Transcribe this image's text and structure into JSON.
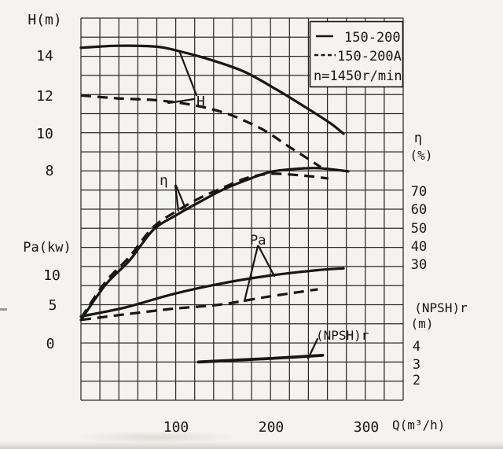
{
  "chart_data": {
    "type": "line",
    "description": "Centrifugal pump performance curves: head H, efficiency eta, shaft power Pa and (NPSH)r versus flow Q",
    "legend": {
      "items": [
        {
          "label": "150-200",
          "style": "solid"
        },
        {
          "label": "150-200A",
          "style": "dashed"
        }
      ],
      "speed_note": "n=1450r/min"
    },
    "axes": {
      "flow": {
        "title": "Q(m³/h)",
        "ticks": [
          "100",
          "200",
          "300"
        ],
        "range": [
          0,
          340
        ]
      },
      "head": {
        "title": "H(m)",
        "ticks": [
          "14",
          "12",
          "10",
          "8"
        ]
      },
      "power": {
        "title": "Pa(kw)",
        "ticks": [
          "10",
          "5",
          "0"
        ]
      },
      "efficiency": {
        "title": "η",
        "unit": "(%)",
        "ticks": [
          "70",
          "60",
          "50",
          "40",
          "30"
        ]
      },
      "npsh": {
        "title": "(NPSH)r",
        "unit": "(m)",
        "ticks": [
          "4",
          "3",
          "2"
        ]
      }
    },
    "curve_labels": {
      "head": "H",
      "efficiency": "η",
      "power": "Pa",
      "npsh": "(NPSH)r"
    },
    "series": [
      {
        "name": "H 150-200",
        "axis": "H",
        "style": "solid",
        "points": [
          [
            0,
            14.45
          ],
          [
            39,
            14.55
          ],
          [
            80,
            14.5
          ],
          [
            105,
            14.25
          ],
          [
            138,
            13.8
          ],
          [
            172,
            13.2
          ],
          [
            205,
            12.3
          ],
          [
            238,
            11.3
          ],
          [
            263,
            10.5
          ],
          [
            277,
            9.95
          ]
        ]
      },
      {
        "name": "H 150-200A",
        "axis": "H",
        "style": "dashed",
        "points": [
          [
            0,
            11.95
          ],
          [
            39,
            11.8
          ],
          [
            80,
            11.7
          ],
          [
            118,
            11.45
          ],
          [
            151,
            11.05
          ],
          [
            176,
            10.55
          ],
          [
            196,
            10.05
          ],
          [
            217,
            9.35
          ],
          [
            236,
            8.75
          ],
          [
            253,
            8.2
          ]
        ]
      },
      {
        "name": "η 150-200",
        "axis": "eta",
        "style": "solid",
        "points": [
          [
            0,
            2
          ],
          [
            26,
            20.5
          ],
          [
            51,
            33
          ],
          [
            76,
            49
          ],
          [
            101,
            57
          ],
          [
            126,
            64
          ],
          [
            151,
            70.5
          ],
          [
            176,
            75.5
          ],
          [
            200,
            79.5
          ],
          [
            225,
            81
          ],
          [
            250,
            81.5
          ],
          [
            282,
            79.8
          ]
        ]
      },
      {
        "name": "η 150-200A",
        "axis": "eta",
        "style": "dashed",
        "points": [
          [
            0,
            3
          ],
          [
            26,
            22
          ],
          [
            51,
            35
          ],
          [
            76,
            50.5
          ],
          [
            101,
            59
          ],
          [
            126,
            66
          ],
          [
            151,
            71.5
          ],
          [
            176,
            76.5
          ],
          [
            200,
            78.5
          ],
          [
            225,
            78
          ],
          [
            246,
            77
          ],
          [
            261,
            76
          ]
        ]
      },
      {
        "name": "Pa 150-200",
        "axis": "Pa",
        "style": "solid",
        "points": [
          [
            0,
            3.8
          ],
          [
            47,
            5.1
          ],
          [
            97,
            7.0
          ],
          [
            147,
            8.5
          ],
          [
            196,
            9.6
          ],
          [
            246,
            10.4
          ],
          [
            277,
            10.7
          ]
        ]
      },
      {
        "name": "Pa 150-200A",
        "axis": "Pa",
        "style": "dashed",
        "points": [
          [
            0,
            3.3
          ],
          [
            47,
            4.1
          ],
          [
            97,
            4.9
          ],
          [
            147,
            5.5
          ],
          [
            196,
            6.6
          ],
          [
            250,
            7.7
          ]
        ]
      },
      {
        "name": "(NPSH)r",
        "axis": "npsh",
        "style": "solid",
        "points": [
          [
            124,
            3.0
          ],
          [
            163,
            3.1
          ],
          [
            205,
            3.2
          ],
          [
            255,
            3.35
          ]
        ]
      }
    ],
    "grid": {
      "columns": 17,
      "rows": 20,
      "visible": true
    },
    "colors": {
      "ink": "#171717",
      "paper": "#f4f3ef"
    }
  }
}
